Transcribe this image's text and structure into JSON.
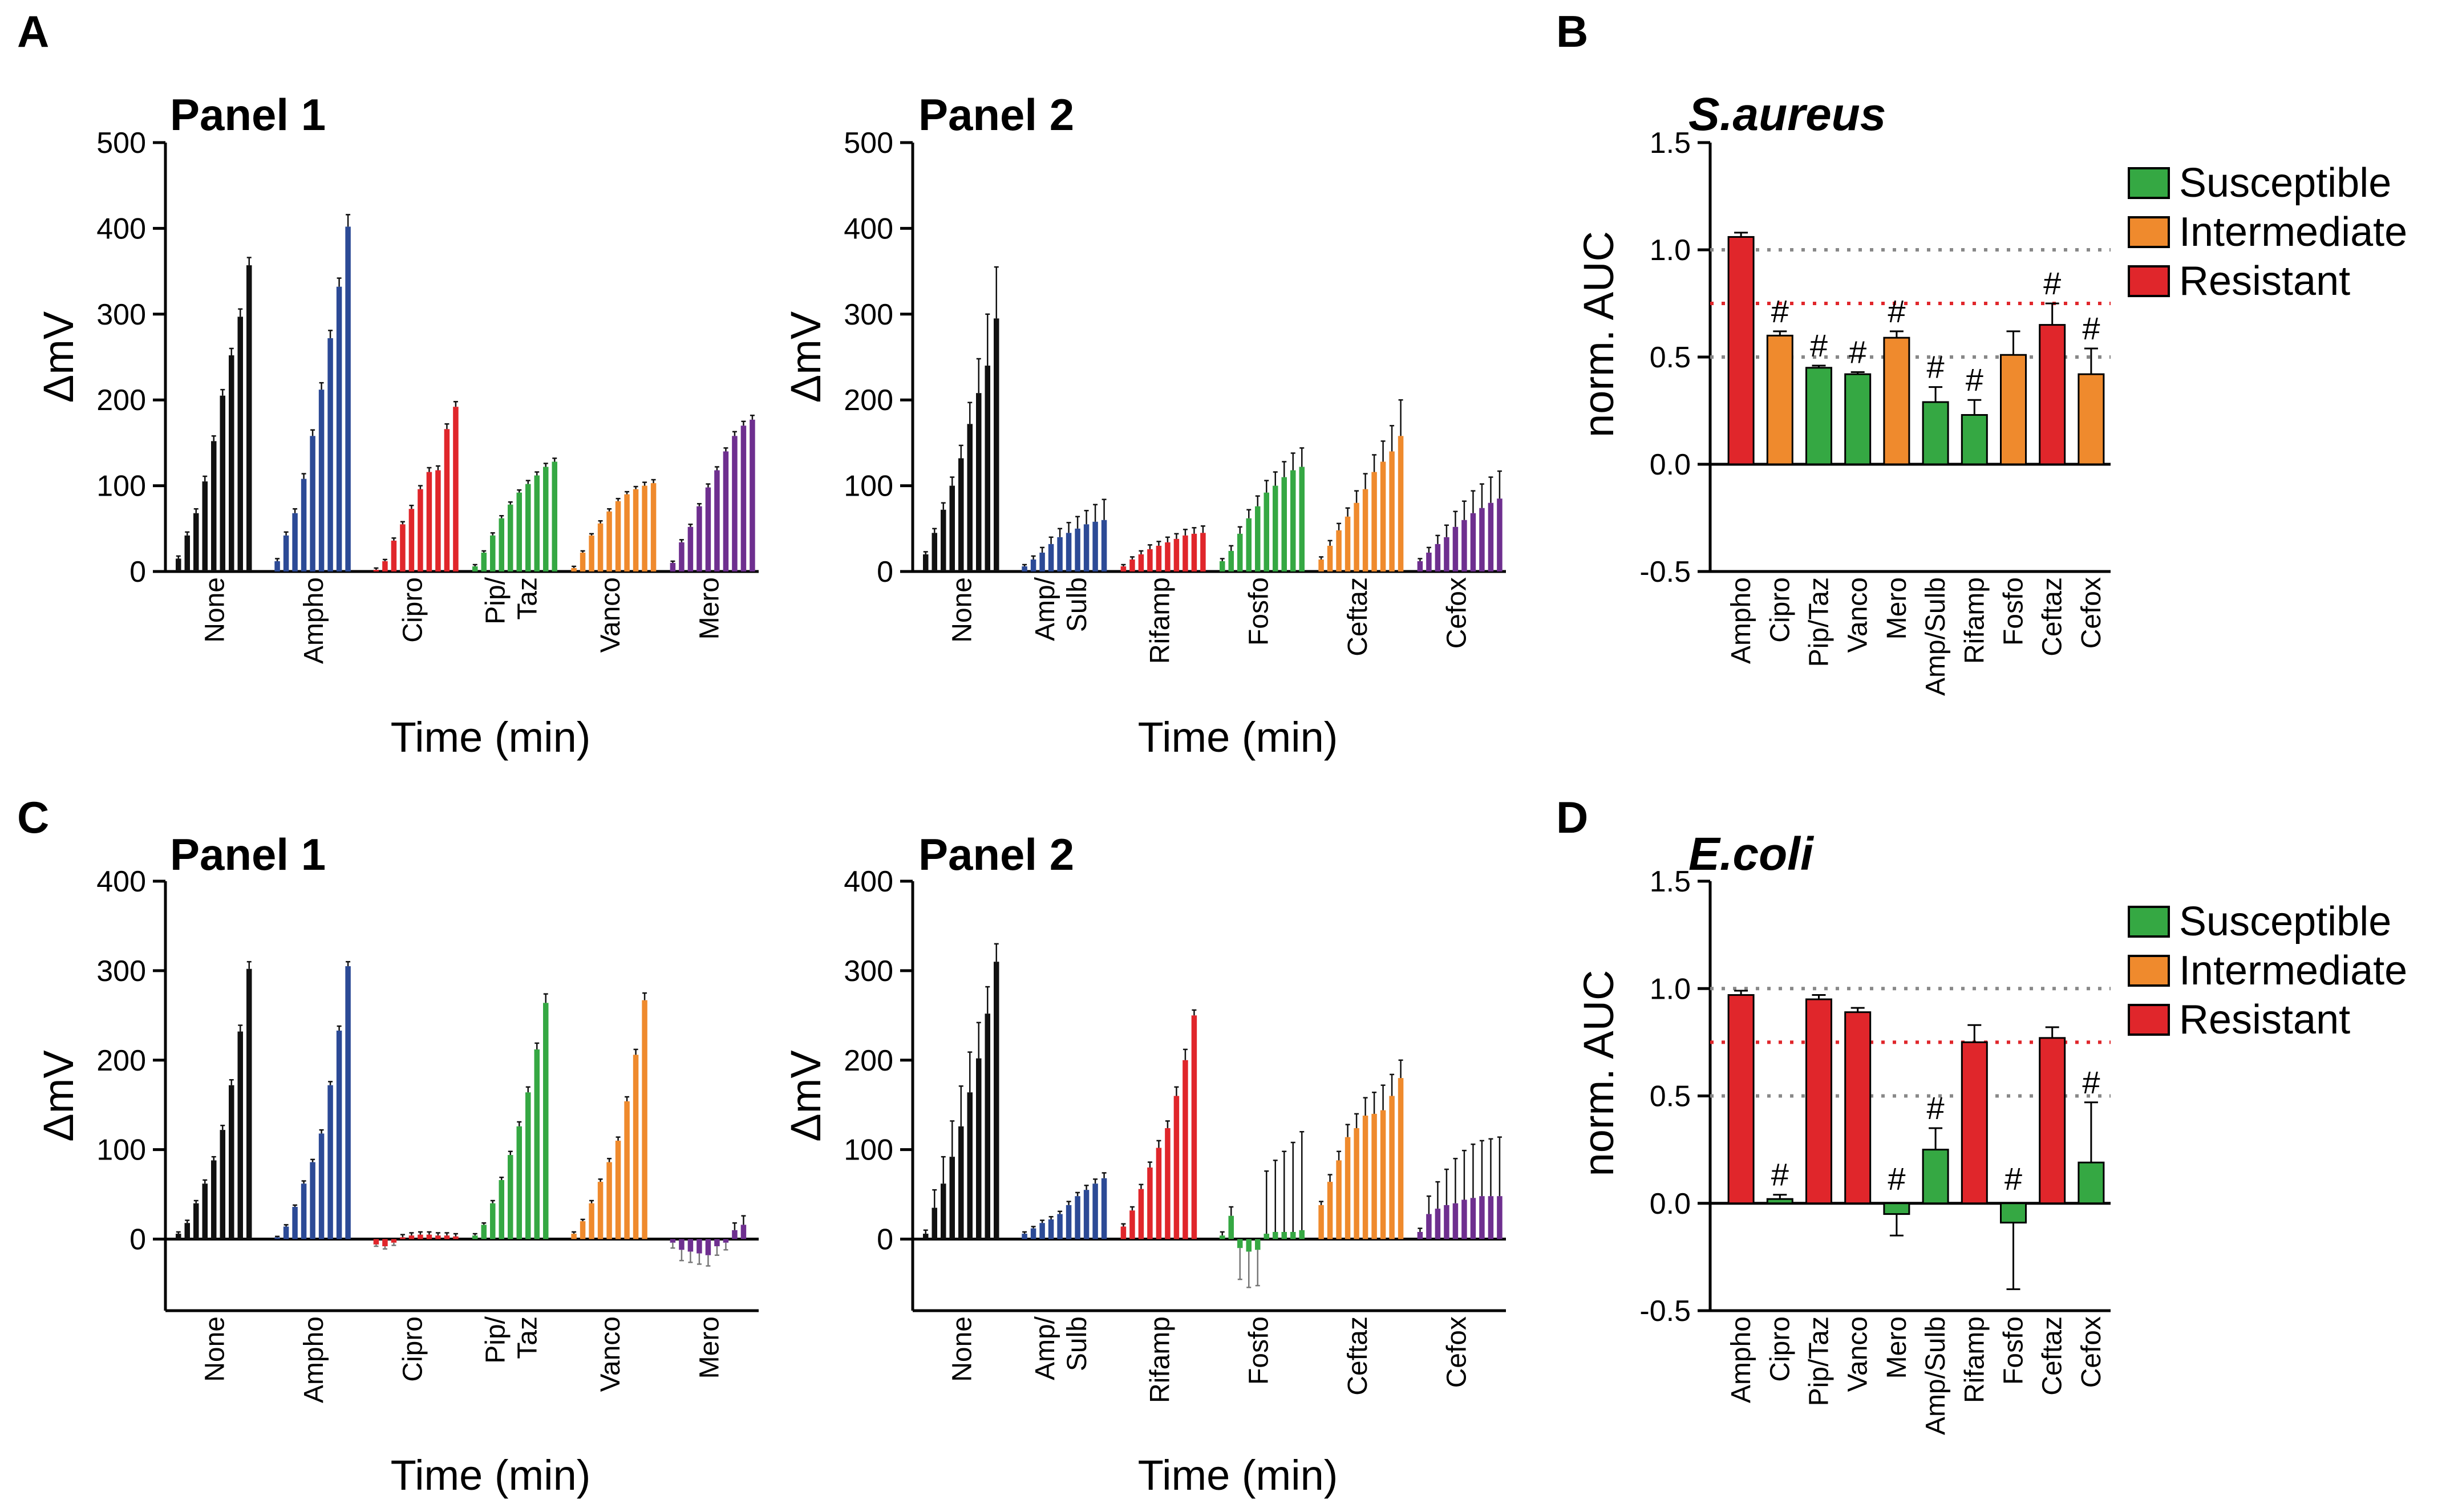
{
  "colors": {
    "black": "#111111",
    "blue": "#2c4a96",
    "red": "#e0262b",
    "green": "#35a843",
    "orange": "#ef8a2d",
    "purple": "#6e2f8f"
  },
  "figure": {
    "letters": [
      "A",
      "B",
      "C",
      "D"
    ],
    "xlabel": "Time (min)",
    "ylabel": "ΔmV",
    "panel1_title": "Panel 1",
    "panel2_title": "Panel 2",
    "aureus_title": "S.aureus",
    "ecoli_title": "E.coli",
    "auc_ylabel": "norm. AUC",
    "hash": "#"
  },
  "chart_data": [
    {
      "id": "A1",
      "type": "bar",
      "title": "Panel 1",
      "xlabel": "Time (min)",
      "ylabel": "ΔmV",
      "ylim": [
        0,
        500
      ],
      "yticks": [
        0,
        100,
        200,
        300,
        400,
        500
      ],
      "groups": [
        {
          "label": [
            "None"
          ],
          "color": "black",
          "values": [
            15,
            42,
            68,
            105,
            152,
            205,
            252,
            297,
            357
          ],
          "errors": [
            3,
            4,
            5,
            6,
            6,
            7,
            8,
            9,
            9
          ]
        },
        {
          "label": [
            "Ampho"
          ],
          "color": "blue",
          "values": [
            12,
            42,
            68,
            108,
            158,
            212,
            272,
            332,
            402
          ],
          "errors": [
            3,
            4,
            5,
            6,
            7,
            8,
            9,
            10,
            14
          ]
        },
        {
          "label": [
            "Cipro"
          ],
          "color": "red",
          "values": [
            2,
            12,
            36,
            55,
            73,
            96,
            116,
            118,
            166,
            192
          ],
          "errors": [
            2,
            2,
            3,
            3,
            4,
            4,
            5,
            5,
            6,
            6
          ]
        },
        {
          "label": [
            "Pip/",
            "Taz"
          ],
          "color": "green",
          "values": [
            6,
            22,
            42,
            62,
            78,
            92,
            102,
            112,
            122,
            128
          ],
          "errors": [
            2,
            2,
            3,
            3,
            3,
            3,
            4,
            4,
            4,
            4
          ]
        },
        {
          "label": [
            "Vanco"
          ],
          "color": "orange",
          "values": [
            4,
            22,
            42,
            56,
            70,
            82,
            90,
            96,
            100,
            103
          ],
          "errors": [
            2,
            2,
            2,
            3,
            3,
            3,
            3,
            3,
            4,
            4
          ]
        },
        {
          "label": [
            "Mero"
          ],
          "color": "purple",
          "values": [
            10,
            34,
            52,
            76,
            98,
            118,
            140,
            158,
            170,
            177
          ],
          "errors": [
            2,
            3,
            3,
            3,
            4,
            4,
            4,
            5,
            5,
            5
          ]
        }
      ]
    },
    {
      "id": "A2",
      "type": "bar",
      "title": "Panel 2",
      "xlabel": "Time (min)",
      "ylabel": "ΔmV",
      "ylim": [
        0,
        500
      ],
      "yticks": [
        0,
        100,
        200,
        300,
        400,
        500
      ],
      "groups": [
        {
          "label": [
            "None"
          ],
          "color": "black",
          "values": [
            20,
            45,
            72,
            100,
            132,
            172,
            208,
            240,
            295
          ],
          "errors": [
            3,
            5,
            8,
            10,
            15,
            25,
            40,
            60,
            60
          ]
        },
        {
          "label": [
            "Amp/",
            "Sulb"
          ],
          "color": "blue",
          "values": [
            6,
            14,
            22,
            32,
            40,
            45,
            50,
            55,
            58,
            60
          ],
          "errors": [
            2,
            4,
            6,
            8,
            10,
            12,
            14,
            16,
            20,
            24
          ]
        },
        {
          "label": [
            "Rifamp"
          ],
          "color": "red",
          "values": [
            6,
            14,
            20,
            26,
            30,
            34,
            38,
            42,
            44,
            45
          ],
          "errors": [
            2,
            3,
            4,
            5,
            5,
            6,
            6,
            7,
            7,
            8
          ]
        },
        {
          "label": [
            "Fosfo"
          ],
          "color": "green",
          "values": [
            12,
            24,
            44,
            62,
            76,
            92,
            100,
            110,
            118,
            122
          ],
          "errors": [
            3,
            6,
            8,
            10,
            12,
            14,
            16,
            18,
            20,
            22
          ]
        },
        {
          "label": [
            "Ceftaz"
          ],
          "color": "orange",
          "values": [
            14,
            30,
            48,
            64,
            80,
            96,
            116,
            128,
            140,
            158
          ],
          "errors": [
            3,
            6,
            8,
            10,
            14,
            18,
            20,
            24,
            30,
            42
          ]
        },
        {
          "label": [
            "Cefox"
          ],
          "color": "purple",
          "values": [
            12,
            22,
            32,
            40,
            52,
            60,
            68,
            74,
            80,
            85
          ],
          "errors": [
            3,
            6,
            10,
            14,
            18,
            22,
            26,
            28,
            30,
            32
          ]
        }
      ]
    },
    {
      "id": "B",
      "type": "bar",
      "title": "S.aureus",
      "ylabel": "norm. AUC",
      "ylim": [
        -0.5,
        1.5
      ],
      "yticks": [
        -0.5,
        0.0,
        0.5,
        1.0,
        1.5
      ],
      "reference_lines": [
        {
          "y": 1.0,
          "color": "#888888"
        },
        {
          "y": 0.75,
          "color": "#e0262b"
        },
        {
          "y": 0.5,
          "color": "#888888"
        }
      ],
      "categories": [
        "Ampho",
        "Cipro",
        "Pip/Taz",
        "Vanco",
        "Mero",
        "Amp/Sulb",
        "Rifamp",
        "Fosfo",
        "Ceftaz",
        "Cefox"
      ],
      "values": [
        1.06,
        0.6,
        0.45,
        0.42,
        0.59,
        0.29,
        0.23,
        0.51,
        0.65,
        0.42
      ],
      "errors": [
        0.02,
        0.02,
        0.01,
        0.01,
        0.03,
        0.07,
        0.07,
        0.11,
        0.1,
        0.12
      ],
      "status": [
        "Resistant",
        "Intermediate",
        "Susceptible",
        "Susceptible",
        "Intermediate",
        "Susceptible",
        "Susceptible",
        "Intermediate",
        "Resistant",
        "Intermediate"
      ],
      "significant": [
        false,
        true,
        true,
        true,
        true,
        true,
        true,
        false,
        true,
        true
      ],
      "legend": [
        "Susceptible",
        "Intermediate",
        "Resistant"
      ]
    },
    {
      "id": "C1",
      "type": "bar",
      "title": "Panel 1",
      "xlabel": "Time (min)",
      "ylabel": "ΔmV",
      "ylim": [
        -80,
        400
      ],
      "yticks": [
        0,
        100,
        200,
        300,
        400
      ],
      "groups": [
        {
          "label": [
            "None"
          ],
          "color": "black",
          "values": [
            6,
            18,
            40,
            62,
            88,
            122,
            172,
            232,
            302
          ],
          "errors": [
            2,
            3,
            3,
            4,
            4,
            5,
            6,
            7,
            8
          ]
        },
        {
          "label": [
            "Ampho"
          ],
          "color": "blue",
          "values": [
            2,
            14,
            36,
            62,
            86,
            118,
            172,
            233,
            305
          ],
          "errors": [
            1,
            2,
            2,
            3,
            3,
            4,
            4,
            5,
            5
          ]
        },
        {
          "label": [
            "Cipro"
          ],
          "color": "red",
          "values": [
            -6,
            -8,
            -4,
            2,
            4,
            5,
            5,
            4,
            4,
            3
          ],
          "errors": [
            2,
            3,
            3,
            3,
            3,
            3,
            3,
            3,
            3,
            3
          ]
        },
        {
          "label": [
            "Pip/",
            "Taz"
          ],
          "color": "green",
          "values": [
            4,
            16,
            40,
            66,
            94,
            126,
            164,
            212,
            264
          ],
          "errors": [
            2,
            2,
            3,
            3,
            4,
            5,
            6,
            7,
            10
          ]
        },
        {
          "label": [
            "Vanco"
          ],
          "color": "orange",
          "values": [
            6,
            20,
            40,
            64,
            86,
            110,
            154,
            206,
            267
          ],
          "errors": [
            2,
            2,
            3,
            3,
            4,
            4,
            5,
            6,
            8
          ]
        },
        {
          "label": [
            "Mero"
          ],
          "color": "purple",
          "values": [
            -4,
            -12,
            -14,
            -16,
            -18,
            -8,
            -4,
            10,
            16
          ],
          "errors": [
            6,
            12,
            12,
            12,
            12,
            10,
            8,
            8,
            10
          ]
        }
      ]
    },
    {
      "id": "C2",
      "type": "bar",
      "title": "Panel 2",
      "xlabel": "Time (min)",
      "ylabel": "ΔmV",
      "ylim": [
        -80,
        400
      ],
      "yticks": [
        0,
        100,
        200,
        300,
        400
      ],
      "groups": [
        {
          "label": [
            "None"
          ],
          "color": "black",
          "values": [
            6,
            35,
            62,
            92,
            126,
            164,
            202,
            252,
            310
          ],
          "errors": [
            4,
            20,
            30,
            40,
            45,
            45,
            40,
            30,
            20
          ]
        },
        {
          "label": [
            "Amp/",
            "Sulb"
          ],
          "color": "blue",
          "values": [
            6,
            12,
            18,
            22,
            28,
            38,
            48,
            55,
            62,
            68
          ],
          "errors": [
            2,
            2,
            3,
            3,
            3,
            4,
            4,
            5,
            5,
            6
          ]
        },
        {
          "label": [
            "Rifamp"
          ],
          "color": "red",
          "values": [
            14,
            32,
            56,
            80,
            102,
            124,
            160,
            200,
            250
          ],
          "errors": [
            3,
            4,
            5,
            6,
            8,
            8,
            10,
            12,
            6
          ]
        },
        {
          "label": [
            "Fosfo"
          ],
          "color": "green",
          "values": [
            4,
            26,
            -10,
            -14,
            -12,
            6,
            8,
            8,
            8,
            10
          ],
          "errors": [
            4,
            10,
            35,
            40,
            40,
            70,
            80,
            90,
            100,
            110
          ]
        },
        {
          "label": [
            "Ceftaz"
          ],
          "color": "orange",
          "values": [
            38,
            64,
            88,
            114,
            124,
            138,
            140,
            144,
            160,
            180
          ],
          "errors": [
            4,
            8,
            10,
            14,
            16,
            20,
            24,
            28,
            24,
            20
          ]
        },
        {
          "label": [
            "Cefox"
          ],
          "color": "purple",
          "values": [
            8,
            28,
            34,
            38,
            40,
            44,
            46,
            48,
            48,
            48
          ],
          "errors": [
            4,
            20,
            30,
            40,
            50,
            55,
            60,
            62,
            64,
            66
          ]
        }
      ]
    },
    {
      "id": "D",
      "type": "bar",
      "title": "E.coli",
      "ylabel": "norm. AUC",
      "ylim": [
        -0.5,
        1.5
      ],
      "yticks": [
        -0.5,
        0.0,
        0.5,
        1.0,
        1.5
      ],
      "reference_lines": [
        {
          "y": 1.0,
          "color": "#888888"
        },
        {
          "y": 0.75,
          "color": "#e0262b"
        },
        {
          "y": 0.5,
          "color": "#888888"
        }
      ],
      "categories": [
        "Ampho",
        "Cipro",
        "Pip/Taz",
        "Vanco",
        "Mero",
        "Amp/Sulb",
        "Rifamp",
        "Fosfo",
        "Ceftaz",
        "Cefox"
      ],
      "values": [
        0.97,
        0.02,
        0.95,
        0.89,
        -0.05,
        0.25,
        0.75,
        -0.09,
        0.77,
        0.19
      ],
      "errors": [
        0.02,
        0.02,
        0.02,
        0.02,
        0.1,
        0.1,
        0.08,
        0.31,
        0.05,
        0.28
      ],
      "status": [
        "Resistant",
        "Susceptible",
        "Resistant",
        "Resistant",
        "Susceptible",
        "Susceptible",
        "Resistant",
        "Susceptible",
        "Resistant",
        "Susceptible"
      ],
      "significant": [
        false,
        true,
        false,
        false,
        true,
        true,
        false,
        true,
        false,
        true
      ],
      "legend": [
        "Susceptible",
        "Intermediate",
        "Resistant"
      ]
    }
  ]
}
